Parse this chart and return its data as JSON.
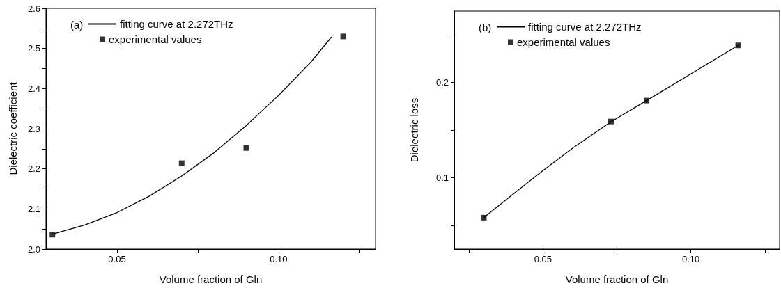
{
  "chart_data": [
    {
      "type": "scatter",
      "xlabel": "Volume fraction of Gln",
      "ylabel": "Dielectric coefficient",
      "annotations": [
        "(a)"
      ],
      "xlim": [
        0.028,
        0.13
      ],
      "xticks": [
        {
          "value": 0.05,
          "label": "0.05"
        },
        {
          "value": 0.075,
          "label": null
        },
        {
          "value": 0.1,
          "label": "0.10"
        },
        {
          "value": 0.125,
          "label": null
        }
      ],
      "ylim": [
        2,
        2.6
      ],
      "yticks": [
        {
          "value": 2,
          "label": "2.0"
        },
        {
          "value": 2.05,
          "label": null
        },
        2.1,
        {
          "value": 2.15,
          "label": null
        },
        2.2,
        {
          "value": 2.25,
          "label": null
        },
        2.3,
        {
          "value": 2.35,
          "label": null
        },
        2.4,
        {
          "value": 2.45,
          "label": null
        },
        2.5,
        {
          "value": 2.55,
          "label": null
        },
        2.6
      ],
      "legend": "top left",
      "grid": false,
      "series": [
        {
          "name": "fitting curve at 2.272THz",
          "type": "line",
          "color": "#000000",
          "marker": "none",
          "line_style": "solid",
          "x": [
            0.03,
            0.04,
            0.05,
            0.06,
            0.07,
            0.08,
            0.09,
            0.1,
            0.11,
            0.1163
          ],
          "values": [
            2.037,
            2.06,
            2.091,
            2.132,
            2.182,
            2.24,
            2.308,
            2.383,
            2.466,
            2.528
          ]
        },
        {
          "name": "experimental values",
          "color": "#000000",
          "marker": "square",
          "x": [
            0.03,
            0.07,
            0.09,
            0.12
          ],
          "values": [
            2.036,
            2.214,
            2.252,
            2.53
          ]
        }
      ]
    },
    {
      "type": "scatter",
      "xlabel": "Volume fraction of Gln",
      "ylabel": "Dielectric loss",
      "annotations": [
        "(b)"
      ],
      "xlim": [
        0.02,
        0.13
      ],
      "xticks": [
        {
          "value": 0.025,
          "label": null
        },
        {
          "value": 0.05,
          "label": "0.05"
        },
        {
          "value": 0.075,
          "label": null
        },
        {
          "value": 0.1,
          "label": "0.10"
        },
        {
          "value": 0.125,
          "label": null
        }
      ],
      "ylim": [
        0.025,
        0.275
      ],
      "yticks": [
        {
          "value": 0.05,
          "label": null
        },
        0.1,
        {
          "value": 0.15,
          "label": null
        },
        0.2,
        {
          "value": 0.25,
          "label": null
        }
      ],
      "legend": "top left",
      "grid": false,
      "series": [
        {
          "name": "fitting curve at 2.272THz",
          "type": "line",
          "color": "#000000",
          "marker": "none",
          "line_style": "solid",
          "x": [
            0.03,
            0.04,
            0.05,
            0.06,
            0.0731,
            0.085,
            0.1,
            0.116
          ],
          "values": [
            0.058,
            0.083,
            0.1075,
            0.131,
            0.159,
            0.181,
            0.209,
            0.239
          ]
        },
        {
          "name": "experimental values",
          "color": "#000000",
          "marker": "square",
          "x": [
            0.03,
            0.073,
            0.085,
            0.116
          ],
          "values": [
            0.058,
            0.159,
            0.181,
            0.239
          ]
        }
      ]
    }
  ]
}
